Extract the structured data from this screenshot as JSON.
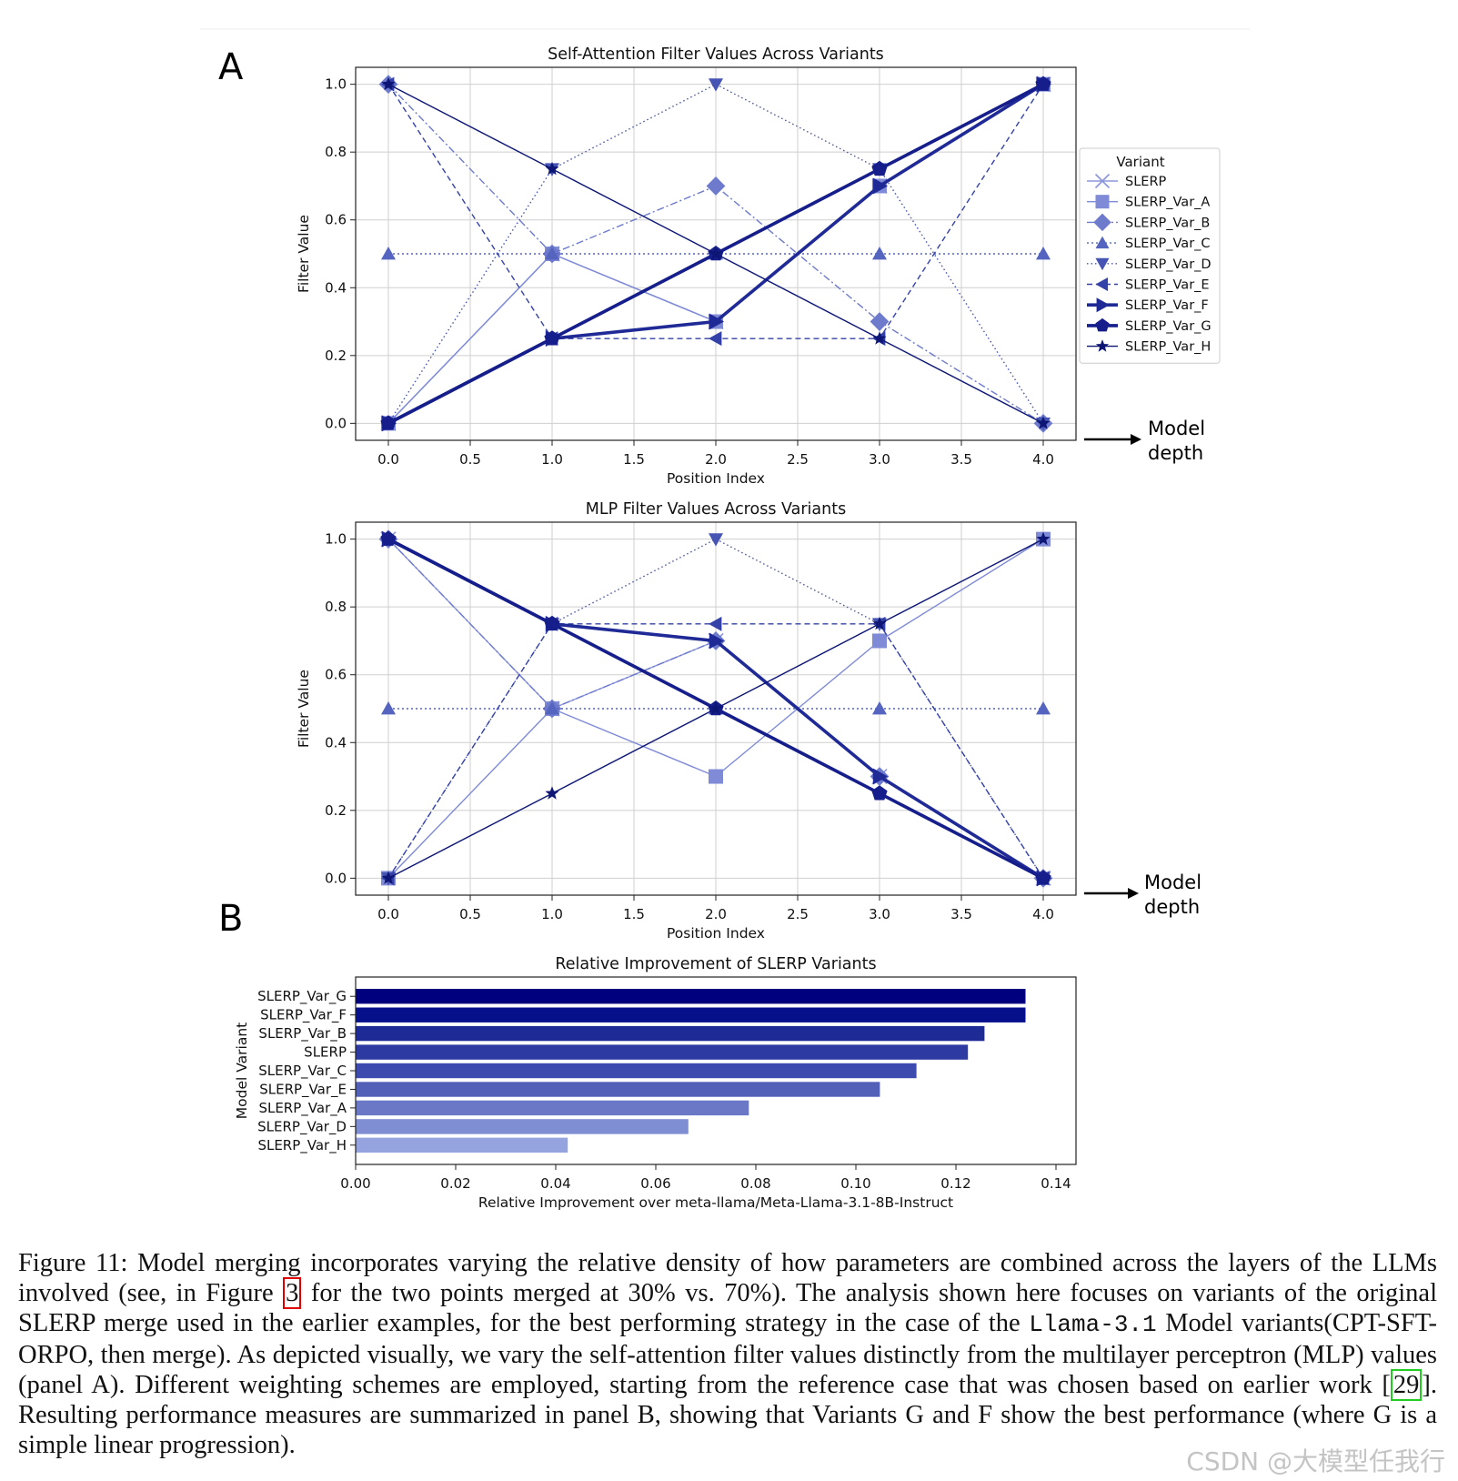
{
  "panel_labels": {
    "a": "A",
    "b": "B"
  },
  "annotation": {
    "line1": "Model",
    "line2": "depth"
  },
  "legend": {
    "title": "Variant"
  },
  "styles": [
    {
      "name": "SLERP",
      "color": "#8C96DC",
      "marker": "x",
      "dash": "",
      "width": 1.4
    },
    {
      "name": "SLERP_Var_A",
      "color": "#7F8BD6",
      "marker": "square",
      "dash": "",
      "width": 1.4
    },
    {
      "name": "SLERP_Var_B",
      "color": "#6E7BCC",
      "marker": "diamond",
      "dash": "8 3 2 3",
      "width": 1.4
    },
    {
      "name": "SLERP_Var_C",
      "color": "#5564BE",
      "marker": "triangle-up",
      "dash": "2 3",
      "width": 1.4
    },
    {
      "name": "SLERP_Var_D",
      "color": "#4654B4",
      "marker": "triangle-down",
      "dash": "1.5 3",
      "width": 1.4
    },
    {
      "name": "SLERP_Var_E",
      "color": "#3441A8",
      "marker": "triangle-left",
      "dash": "6 4",
      "width": 1.4
    },
    {
      "name": "SLERP_Var_F",
      "color": "#1F2A96",
      "marker": "triangle-right",
      "dash": "",
      "width": 3.6
    },
    {
      "name": "SLERP_Var_G",
      "color": "#151E8A",
      "marker": "pentagon",
      "dash": "",
      "width": 3.6
    },
    {
      "name": "SLERP_Var_H",
      "color": "#0D1675",
      "marker": "star",
      "dash": "",
      "width": 1.4
    }
  ],
  "chart_data": [
    {
      "type": "line",
      "title": "Self-Attention Filter Values Across Variants",
      "xlabel": "Position Index",
      "ylabel": "Filter Value",
      "xlim": [
        -0.2,
        4.2
      ],
      "ylim": [
        -0.05,
        1.05
      ],
      "xticks": [
        "0.0",
        "0.5",
        "1.0",
        "1.5",
        "2.0",
        "2.5",
        "3.0",
        "3.5",
        "4.0"
      ],
      "yticks": [
        "0.0",
        "0.2",
        "0.4",
        "0.6",
        "0.8",
        "1.0"
      ],
      "grid": true,
      "legend_position": "outside right",
      "x": [
        0,
        1,
        2,
        3,
        4
      ],
      "series": [
        {
          "name": "SLERP",
          "values": [
            0,
            0.5,
            0.3,
            0.7,
            1.0
          ]
        },
        {
          "name": "SLERP_Var_A",
          "values": [
            0,
            0.5,
            0.3,
            0.7,
            1.0
          ]
        },
        {
          "name": "SLERP_Var_B",
          "values": [
            1.0,
            0.5,
            0.7,
            0.3,
            0
          ]
        },
        {
          "name": "SLERP_Var_C",
          "values": [
            0.5,
            0.5,
            0.5,
            0.5,
            0.5
          ]
        },
        {
          "name": "SLERP_Var_D",
          "values": [
            0,
            0.75,
            1.0,
            0.75,
            0
          ]
        },
        {
          "name": "SLERP_Var_E",
          "values": [
            1.0,
            0.25,
            0.25,
            0.25,
            1.0
          ]
        },
        {
          "name": "SLERP_Var_F",
          "values": [
            0,
            0.25,
            0.3,
            0.7,
            1.0
          ]
        },
        {
          "name": "SLERP_Var_G",
          "values": [
            0,
            0.25,
            0.5,
            0.75,
            1.0
          ]
        },
        {
          "name": "SLERP_Var_H",
          "values": [
            1.0,
            0.75,
            0.5,
            0.25,
            0
          ]
        }
      ]
    },
    {
      "type": "line",
      "title": "MLP Filter Values Across Variants",
      "xlabel": "Position Index",
      "ylabel": "Filter Value",
      "xlim": [
        -0.2,
        4.2
      ],
      "ylim": [
        -0.05,
        1.05
      ],
      "xticks": [
        "0.0",
        "0.5",
        "1.0",
        "1.5",
        "2.0",
        "2.5",
        "3.0",
        "3.5",
        "4.0"
      ],
      "yticks": [
        "0.0",
        "0.2",
        "0.4",
        "0.6",
        "0.8",
        "1.0"
      ],
      "grid": true,
      "x": [
        0,
        1,
        2,
        3,
        4
      ],
      "series": [
        {
          "name": "SLERP",
          "values": [
            1.0,
            0.5,
            0.7,
            0.3,
            0
          ]
        },
        {
          "name": "SLERP_Var_A",
          "values": [
            0,
            0.5,
            0.3,
            0.7,
            1.0
          ]
        },
        {
          "name": "SLERP_Var_B",
          "values": [
            1.0,
            0.5,
            0.7,
            0.3,
            0
          ]
        },
        {
          "name": "SLERP_Var_C",
          "values": [
            0.5,
            0.5,
            0.5,
            0.5,
            0.5
          ]
        },
        {
          "name": "SLERP_Var_D",
          "values": [
            0,
            0.75,
            1.0,
            0.75,
            0
          ]
        },
        {
          "name": "SLERP_Var_E",
          "values": [
            0,
            0.75,
            0.75,
            0.75,
            0
          ]
        },
        {
          "name": "SLERP_Var_F",
          "values": [
            1.0,
            0.75,
            0.7,
            0.3,
            0
          ]
        },
        {
          "name": "SLERP_Var_G",
          "values": [
            1.0,
            0.75,
            0.5,
            0.25,
            0
          ]
        },
        {
          "name": "SLERP_Var_H",
          "values": [
            0,
            0.25,
            0.5,
            0.75,
            1.0
          ]
        }
      ]
    },
    {
      "type": "bar",
      "orientation": "horizontal",
      "title": "Relative Improvement of SLERP Variants",
      "xlabel": "Relative Improvement over meta-llama/Meta-Llama-3.1-8B-Instruct",
      "ylabel": "Model Variant",
      "xlim": [
        0,
        0.144
      ],
      "xticks": [
        "0.00",
        "0.02",
        "0.04",
        "0.06",
        "0.08",
        "0.10",
        "0.12",
        "0.14"
      ],
      "grid": false,
      "categories": [
        "SLERP_Var_G",
        "SLERP_Var_F",
        "SLERP_Var_B",
        "SLERP",
        "SLERP_Var_C",
        "SLERP_Var_E",
        "SLERP_Var_A",
        "SLERP_Var_D",
        "SLERP_Var_H"
      ],
      "values": [
        0.1339,
        0.1339,
        0.1257,
        0.1224,
        0.1121,
        0.1048,
        0.0786,
        0.0665,
        0.0424
      ],
      "colors": [
        "#00007E",
        "#06108A",
        "#1E2A96",
        "#2D3AA2",
        "#3D4AAE",
        "#5260B8",
        "#6A78C6",
        "#7F8DD2",
        "#95A3DF"
      ]
    }
  ],
  "caption": {
    "part1": "Figure 11: Model merging incorporates varying the relative density of how parameters are combined across the layers of the LLMs involved (see, in Figure ",
    "ref_figure": "3",
    "part2": " for the two points merged at 30% vs. 70%). The analysis shown here focuses on variants of the original SLERP merge used in the earlier examples, for the best performing strategy in the case of the ",
    "code": "Llama-3.1",
    "part3": " Model variants(CPT-SFT-ORPO, then merge). As depicted visually, we vary the self-attention filter values distinctly from the multilayer perceptron (MLP) values (panel A). Different weighting schemes are employed, starting from the reference case that was chosen based on earlier work [",
    "ref_work": "29",
    "part4": "]. Resulting performance measures are summarized in panel B, showing that Variants G and F show the best performance (where G is a simple linear progression)."
  },
  "watermark": "CSDN @大模型任我行"
}
